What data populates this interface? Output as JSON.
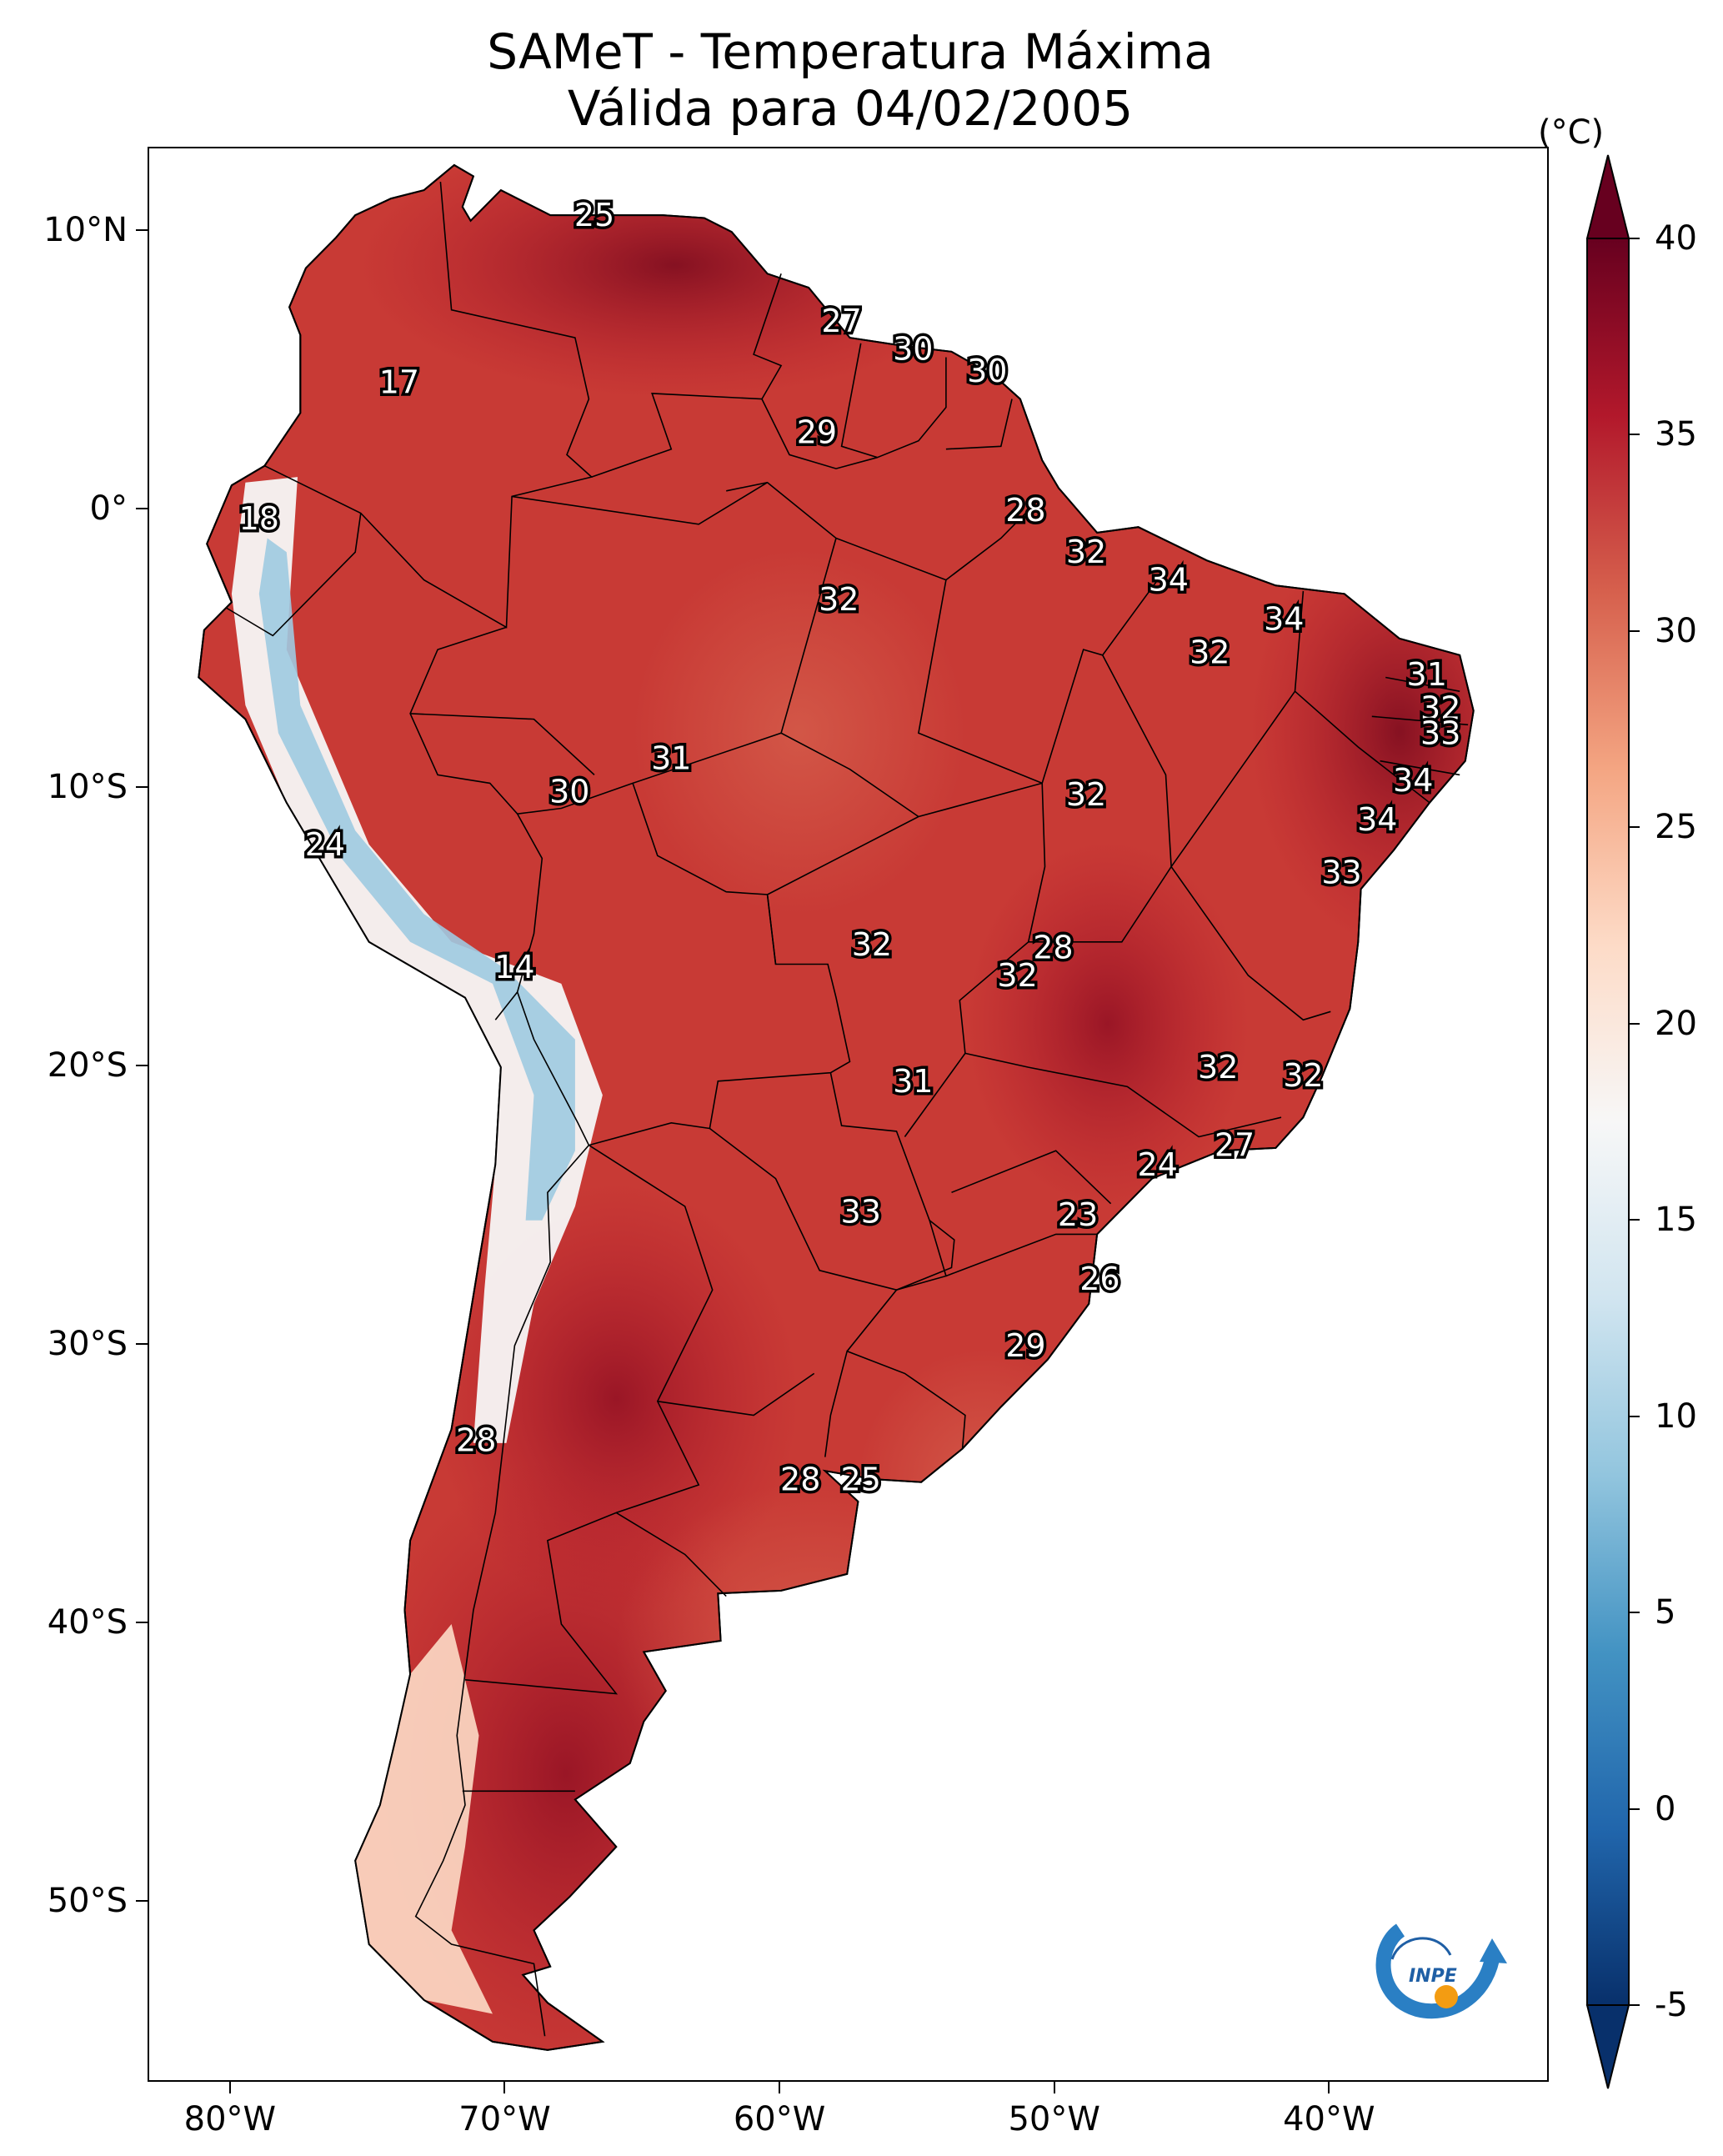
{
  "title": {
    "line1": "SAMeT - Temperatura Máxima",
    "line2": "Válida para 04/02/2005"
  },
  "map": {
    "lon_range": [
      -83,
      -32
    ],
    "lat_range": [
      -56.5,
      13
    ],
    "x_ticks": [
      {
        "lon": -80,
        "label": "80°W"
      },
      {
        "lon": -70,
        "label": "70°W"
      },
      {
        "lon": -60,
        "label": "60°W"
      },
      {
        "lon": -50,
        "label": "50°W"
      },
      {
        "lon": -40,
        "label": "40°W"
      }
    ],
    "y_ticks": [
      {
        "lat": 10,
        "label": "10°N"
      },
      {
        "lat": 0,
        "label": "0°"
      },
      {
        "lat": -10,
        "label": "10°S"
      },
      {
        "lat": -20,
        "label": "20°S"
      },
      {
        "lat": -30,
        "label": "30°S"
      },
      {
        "lat": -40,
        "label": "40°S"
      },
      {
        "lat": -50,
        "label": "50°S"
      }
    ],
    "temperature_labels": [
      {
        "lon": -66.8,
        "lat": 10.6,
        "value": "25"
      },
      {
        "lon": -57.8,
        "lat": 6.8,
        "value": "27"
      },
      {
        "lon": -55.2,
        "lat": 5.8,
        "value": "30"
      },
      {
        "lon": -52.5,
        "lat": 5.0,
        "value": "30"
      },
      {
        "lon": -73.9,
        "lat": 4.6,
        "value": "17"
      },
      {
        "lon": -58.7,
        "lat": 2.8,
        "value": "29"
      },
      {
        "lon": -51.1,
        "lat": 0.0,
        "value": "28"
      },
      {
        "lon": -79.0,
        "lat": -0.3,
        "value": "18"
      },
      {
        "lon": -48.9,
        "lat": -1.5,
        "value": "32"
      },
      {
        "lon": -45.9,
        "lat": -2.5,
        "value": "34"
      },
      {
        "lon": -57.9,
        "lat": -3.2,
        "value": "32"
      },
      {
        "lon": -41.7,
        "lat": -3.9,
        "value": "34"
      },
      {
        "lon": -44.4,
        "lat": -5.1,
        "value": "32"
      },
      {
        "lon": -36.5,
        "lat": -5.9,
        "value": "31"
      },
      {
        "lon": -36.0,
        "lat": -7.1,
        "value": "32"
      },
      {
        "lon": -36.0,
        "lat": -8.0,
        "value": "33"
      },
      {
        "lon": -64.0,
        "lat": -8.9,
        "value": "31"
      },
      {
        "lon": -37.0,
        "lat": -9.7,
        "value": "34"
      },
      {
        "lon": -67.7,
        "lat": -10.1,
        "value": "30"
      },
      {
        "lon": -48.9,
        "lat": -10.2,
        "value": "32"
      },
      {
        "lon": -38.3,
        "lat": -11.1,
        "value": "34"
      },
      {
        "lon": -76.6,
        "lat": -12.0,
        "value": "24"
      },
      {
        "lon": -39.6,
        "lat": -13.0,
        "value": "33"
      },
      {
        "lon": -56.7,
        "lat": -15.6,
        "value": "32"
      },
      {
        "lon": -50.1,
        "lat": -15.7,
        "value": "28"
      },
      {
        "lon": -51.4,
        "lat": -16.7,
        "value": "32"
      },
      {
        "lon": -69.7,
        "lat": -16.4,
        "value": "14"
      },
      {
        "lon": -44.1,
        "lat": -20.0,
        "value": "32"
      },
      {
        "lon": -55.2,
        "lat": -20.5,
        "value": "31"
      },
      {
        "lon": -41.0,
        "lat": -20.3,
        "value": "32"
      },
      {
        "lon": -43.5,
        "lat": -22.8,
        "value": "27"
      },
      {
        "lon": -46.3,
        "lat": -23.5,
        "value": "24"
      },
      {
        "lon": -57.1,
        "lat": -25.2,
        "value": "33"
      },
      {
        "lon": -49.2,
        "lat": -25.3,
        "value": "23"
      },
      {
        "lon": -48.4,
        "lat": -27.6,
        "value": "26"
      },
      {
        "lon": -51.1,
        "lat": -30.0,
        "value": "29"
      },
      {
        "lon": -71.1,
        "lat": -33.4,
        "value": "28"
      },
      {
        "lon": -59.3,
        "lat": -34.8,
        "value": "28"
      },
      {
        "lon": -57.1,
        "lat": -34.8,
        "value": "25"
      }
    ]
  },
  "colorbar": {
    "unit": "(°C)",
    "min": -5,
    "max": 40,
    "ticks": [
      {
        "value": 40,
        "label": "40"
      },
      {
        "value": 35,
        "label": "35"
      },
      {
        "value": 30,
        "label": "30"
      },
      {
        "value": 25,
        "label": "25"
      },
      {
        "value": 20,
        "label": "20"
      },
      {
        "value": 15,
        "label": "15"
      },
      {
        "value": 10,
        "label": "10"
      },
      {
        "value": 5,
        "label": "5"
      },
      {
        "value": 0,
        "label": "0"
      },
      {
        "value": -5,
        "label": "-5"
      }
    ],
    "colors": [
      "#08306b",
      "#2166ac",
      "#4393c3",
      "#92c5de",
      "#d1e5f0",
      "#f7f7f7",
      "#fddbc7",
      "#f4a582",
      "#d6604d",
      "#b2182b",
      "#67001f"
    ]
  },
  "logo": {
    "text": "INPE"
  }
}
